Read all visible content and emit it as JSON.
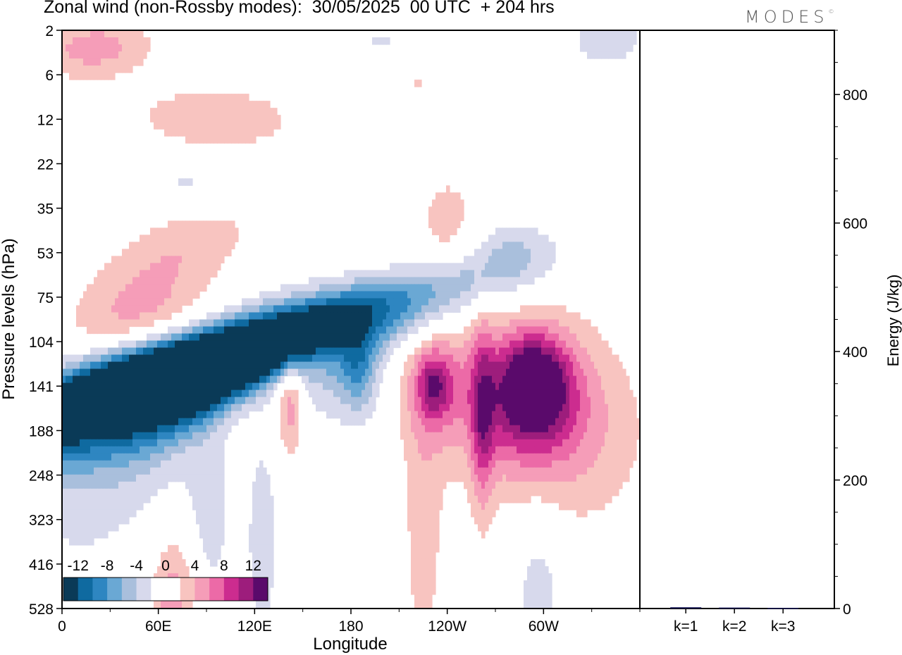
{
  "header": {
    "title": "Zonal wind (non-Rossby modes):  30/05/2025  00 UTC  + 204 hrs",
    "logo": "MODES",
    "logo_mark": "©"
  },
  "chart_data": [
    {
      "type": "heatmap",
      "title": "Zonal wind (non-Rossby modes):  30/05/2025  00 UTC  + 204 hrs",
      "xlabel": "Longitude",
      "ylabel": "Pressure levels (hPa)",
      "x_ticks": [
        "0",
        "60E",
        "120E",
        "180",
        "120W",
        "60W"
      ],
      "x_tick_values": [
        0,
        60,
        120,
        180,
        240,
        300
      ],
      "xlim": [
        0,
        360
      ],
      "y_ticks": [
        "2",
        "6",
        "12",
        "22",
        "35",
        "53",
        "75",
        "104",
        "141",
        "188",
        "248",
        "323",
        "416",
        "528"
      ],
      "colorbar": {
        "labels": [
          "-12",
          "-8",
          "-4",
          "0",
          "4",
          "8",
          "12"
        ],
        "levels": [
          -14,
          -12,
          -10,
          -8,
          -6,
          -4,
          -2,
          0,
          2,
          4,
          6,
          8,
          10,
          12,
          14
        ],
        "colors": [
          "#0a3a57",
          "#0f6aa0",
          "#2e86c1",
          "#6aa8d4",
          "#a9bfdc",
          "#d7d9ec",
          "#ffffff",
          "#ffffff",
          "#f8c4c0",
          "#f59db8",
          "#ec6aa7",
          "#cc2c8f",
          "#9d1d7c",
          "#5a0a6b"
        ]
      },
      "blobs": [
        {
          "lon": 72,
          "lev": 7.5,
          "dlon": 22,
          "dlev": 2.0,
          "rot": -55,
          "v": -13
        },
        {
          "lon": 68,
          "lev": 8.0,
          "dlon": 26,
          "dlev": 2.4,
          "rot": -55,
          "v": -10
        },
        {
          "lon": 60,
          "lev": 8.6,
          "dlon": 30,
          "dlev": 2.0,
          "rot": -45,
          "v": -7
        },
        {
          "lon": 55,
          "lev": 9.5,
          "dlon": 28,
          "dlev": 2.4,
          "rot": -20,
          "v": -3
        },
        {
          "lon": 40,
          "lev": 7.5,
          "dlon": 30,
          "dlev": 1.0,
          "rot": -20,
          "v": -3
        },
        {
          "lon": 45,
          "lev": 6.5,
          "dlon": 28,
          "dlev": 0.6,
          "rot": -30,
          "v": 5
        },
        {
          "lon": 60,
          "lev": 5.5,
          "dlon": 30,
          "dlev": 0.6,
          "rot": -30,
          "v": 3
        },
        {
          "lon": 85,
          "lev": 4.5,
          "dlon": 25,
          "dlev": 0.6,
          "rot": -25,
          "v": 3
        },
        {
          "lon": 92,
          "lev": 11.0,
          "dlon": 10,
          "dlev": 1.5,
          "rot": 0,
          "v": -3
        },
        {
          "lon": 125,
          "lev": 11.5,
          "dlon": 8,
          "dlev": 1.8,
          "rot": 0,
          "v": -3
        },
        {
          "lon": 73,
          "lev": 12.5,
          "dlon": 10,
          "dlev": 0.9,
          "rot": 0,
          "v": 3
        },
        {
          "lon": 140,
          "lev": 7.8,
          "dlon": 15,
          "dlev": 1.2,
          "rot": -30,
          "v": 4
        },
        {
          "lon": 142,
          "lev": 8.4,
          "dlon": 6,
          "dlev": 0.8,
          "rot": 0,
          "v": 6
        },
        {
          "lon": 175,
          "lev": 7.8,
          "dlon": 22,
          "dlev": 0.9,
          "rot": 0,
          "v": -3
        },
        {
          "lon": 185,
          "lev": 7.6,
          "dlon": 8,
          "dlev": 0.7,
          "rot": 0,
          "v": -5
        },
        {
          "lon": 230,
          "lev": 8.0,
          "dlon": 14,
          "dlev": 0.9,
          "rot": 0,
          "v": 4
        },
        {
          "lon": 232,
          "lev": 8.0,
          "dlon": 7,
          "dlev": 0.5,
          "rot": 0,
          "v": 6
        },
        {
          "lon": 275,
          "lev": 8.0,
          "dlon": 40,
          "dlev": 1.5,
          "rot": 0,
          "v": 4
        },
        {
          "lon": 290,
          "lev": 8.4,
          "dlon": 24,
          "dlev": 1.0,
          "rot": 0,
          "v": 6
        },
        {
          "lon": 295,
          "lev": 7.9,
          "dlon": 14,
          "dlev": 0.7,
          "rot": 0,
          "v": 9
        },
        {
          "lon": 262,
          "lev": 8.8,
          "dlon": 5,
          "dlev": 1.5,
          "rot": 0,
          "v": 6
        },
        {
          "lon": 320,
          "lev": 9.3,
          "dlon": 35,
          "dlev": 1.5,
          "rot": 0,
          "v": 3
        },
        {
          "lon": 225,
          "lev": 11.5,
          "dlon": 9,
          "dlev": 2.2,
          "rot": 0,
          "v": 3
        },
        {
          "lon": 297,
          "lev": 12.5,
          "dlon": 12,
          "dlev": 1.4,
          "rot": 0,
          "v": -3
        },
        {
          "lon": 66,
          "lev": 13.2,
          "dlon": 8,
          "dlev": 1.0,
          "rot": 0,
          "v": 3
        },
        {
          "lon": 95,
          "lev": 2.0,
          "dlon": 35,
          "dlev": 0.5,
          "rot": -10,
          "v": 4
        },
        {
          "lon": 230,
          "lev": 1.2,
          "dlon": 40,
          "dlev": 0.5,
          "rot": 8,
          "v": 3
        },
        {
          "lon": 20,
          "lev": 0.4,
          "dlon": 25,
          "dlev": 0.5,
          "rot": -15,
          "v": 5
        },
        {
          "lon": 280,
          "lev": 1.5,
          "dlon": 45,
          "dlev": 0.45,
          "rot": 0,
          "v": -2.5
        },
        {
          "lon": 240,
          "lev": 4.2,
          "dlon": 12,
          "dlev": 0.7,
          "rot": 0,
          "v": 3
        },
        {
          "lon": 280,
          "lev": 5.0,
          "dlon": 15,
          "dlev": 0.6,
          "rot": 0,
          "v": -3
        },
        {
          "lon": 80,
          "lev": 3.5,
          "dlon": 25,
          "dlev": 0.5,
          "rot": 0,
          "v": -2.5
        },
        {
          "lon": 340,
          "lev": 0.2,
          "dlon": 20,
          "dlev": 0.5,
          "rot": 0,
          "v": -3
        },
        {
          "lon": 200,
          "lev": 0.3,
          "dlon": 15,
          "dlev": 0.4,
          "rot": 0,
          "v": -2.5
        }
      ]
    },
    {
      "type": "bar",
      "title": "",
      "categories": [
        "k=1",
        "k=2",
        "k=3"
      ],
      "values": [
        2,
        1.5,
        1
      ],
      "ylabel": "Energy (J/kg)",
      "ylim": [
        0,
        900
      ],
      "y_ticks": [
        0,
        200,
        400,
        600,
        800
      ]
    }
  ]
}
